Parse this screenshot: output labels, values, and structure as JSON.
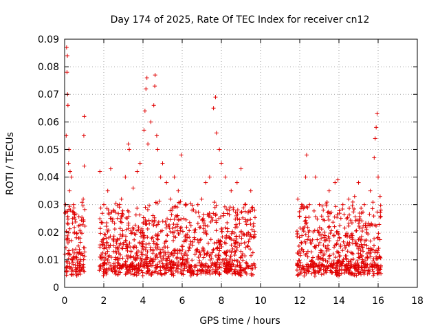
{
  "chart_data": {
    "type": "scatter",
    "title": "Day 174 of 2025, Rate Of TEC Index for receiver cn12",
    "xlabel": "GPS time / hours",
    "ylabel": "ROTI / TECUs",
    "xlim": [
      0,
      18
    ],
    "ylim": [
      0,
      0.09
    ],
    "x_ticks": [
      0,
      2,
      4,
      6,
      8,
      10,
      12,
      14,
      16,
      18
    ],
    "x_tick_labels": [
      "0",
      "2",
      "4",
      "6",
      "8",
      "10",
      "12",
      "14",
      "16",
      "18"
    ],
    "y_ticks": [
      0,
      0.01,
      0.02,
      0.03,
      0.04,
      0.05,
      0.06,
      0.07,
      0.08,
      0.09
    ],
    "y_tick_labels": [
      "0",
      "0.01",
      "0.02",
      "0.03",
      "0.04",
      "0.05",
      "0.06",
      "0.07",
      "0.08",
      "0.09"
    ],
    "grid": true,
    "marker": "+",
    "marker_color": "#e00000",
    "data_gaps_hours": [
      [
        1.05,
        1.75
      ],
      [
        9.75,
        11.85
      ]
    ],
    "series": [
      {
        "name": "ROTI",
        "points": [
          [
            0.02,
            0.012
          ],
          [
            0.05,
            0.03
          ],
          [
            0.08,
            0.055
          ],
          [
            0.1,
            0.087
          ],
          [
            0.12,
            0.078
          ],
          [
            0.14,
            0.084
          ],
          [
            0.15,
            0.07
          ],
          [
            0.17,
            0.066
          ],
          [
            0.2,
            0.045
          ],
          [
            0.22,
            0.05
          ],
          [
            0.25,
            0.035
          ],
          [
            0.28,
            0.042
          ],
          [
            0.3,
            0.028
          ],
          [
            0.35,
            0.04
          ],
          [
            0.4,
            0.025
          ],
          [
            0.45,
            0.03
          ],
          [
            0.5,
            0.02
          ],
          [
            0.6,
            0.018
          ],
          [
            0.7,
            0.015
          ],
          [
            0.8,
            0.02
          ],
          [
            0.95,
            0.032
          ],
          [
            1.0,
            0.062
          ],
          [
            0.98,
            0.055
          ],
          [
            1.0,
            0.044
          ],
          [
            1.8,
            0.042
          ],
          [
            2.0,
            0.03
          ],
          [
            2.2,
            0.035
          ],
          [
            2.35,
            0.043
          ],
          [
            2.5,
            0.028
          ],
          [
            2.7,
            0.025
          ],
          [
            2.9,
            0.032
          ],
          [
            3.1,
            0.04
          ],
          [
            3.25,
            0.052
          ],
          [
            3.3,
            0.05
          ],
          [
            3.5,
            0.036
          ],
          [
            3.7,
            0.042
          ],
          [
            3.85,
            0.045
          ],
          [
            4.05,
            0.057
          ],
          [
            4.1,
            0.064
          ],
          [
            4.15,
            0.072
          ],
          [
            4.2,
            0.076
          ],
          [
            4.25,
            0.052
          ],
          [
            4.4,
            0.06
          ],
          [
            4.55,
            0.066
          ],
          [
            4.6,
            0.073
          ],
          [
            4.62,
            0.077
          ],
          [
            4.7,
            0.055
          ],
          [
            4.75,
            0.05
          ],
          [
            4.9,
            0.04
          ],
          [
            5.0,
            0.045
          ],
          [
            5.2,
            0.038
          ],
          [
            5.4,
            0.032
          ],
          [
            5.6,
            0.04
          ],
          [
            5.8,
            0.035
          ],
          [
            5.95,
            0.048
          ],
          [
            6.2,
            0.03
          ],
          [
            6.5,
            0.028
          ],
          [
            6.8,
            0.03
          ],
          [
            7.0,
            0.032
          ],
          [
            7.2,
            0.038
          ],
          [
            7.4,
            0.04
          ],
          [
            7.6,
            0.065
          ],
          [
            7.7,
            0.069
          ],
          [
            7.75,
            0.056
          ],
          [
            7.9,
            0.05
          ],
          [
            8.0,
            0.045
          ],
          [
            8.2,
            0.04
          ],
          [
            8.5,
            0.035
          ],
          [
            8.8,
            0.038
          ],
          [
            9.0,
            0.043
          ],
          [
            9.2,
            0.03
          ],
          [
            9.5,
            0.035
          ],
          [
            9.7,
            0.028
          ],
          [
            11.9,
            0.032
          ],
          [
            12.1,
            0.03
          ],
          [
            12.3,
            0.04
          ],
          [
            12.35,
            0.048
          ],
          [
            12.5,
            0.03
          ],
          [
            12.8,
            0.04
          ],
          [
            13.0,
            0.03
          ],
          [
            13.2,
            0.028
          ],
          [
            13.5,
            0.035
          ],
          [
            13.8,
            0.038
          ],
          [
            13.95,
            0.039
          ],
          [
            14.2,
            0.03
          ],
          [
            14.5,
            0.032
          ],
          [
            14.8,
            0.033
          ],
          [
            15.0,
            0.038
          ],
          [
            15.3,
            0.03
          ],
          [
            15.6,
            0.035
          ],
          [
            15.8,
            0.047
          ],
          [
            15.85,
            0.054
          ],
          [
            15.9,
            0.058
          ],
          [
            15.95,
            0.063
          ],
          [
            16.0,
            0.04
          ],
          [
            16.1,
            0.033
          ]
        ]
      }
    ]
  }
}
